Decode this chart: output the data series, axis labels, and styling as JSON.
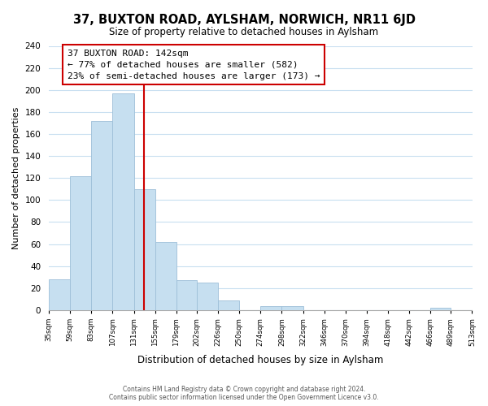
{
  "title": "37, BUXTON ROAD, AYLSHAM, NORWICH, NR11 6JD",
  "subtitle": "Size of property relative to detached houses in Aylsham",
  "xlabel": "Distribution of detached houses by size in Aylsham",
  "ylabel": "Number of detached properties",
  "bin_edges": [
    35,
    59,
    83,
    107,
    131,
    155,
    179,
    202,
    226,
    250,
    274,
    298,
    322,
    346,
    370,
    394,
    418,
    442,
    466,
    489,
    513
  ],
  "bar_heights": [
    28,
    122,
    172,
    197,
    110,
    62,
    27,
    25,
    9,
    0,
    4,
    4,
    0,
    0,
    0,
    0,
    0,
    0,
    2,
    0
  ],
  "tick_labels": [
    "35sqm",
    "59sqm",
    "83sqm",
    "107sqm",
    "131sqm",
    "155sqm",
    "179sqm",
    "202sqm",
    "226sqm",
    "250sqm",
    "274sqm",
    "298sqm",
    "322sqm",
    "346sqm",
    "370sqm",
    "394sqm",
    "418sqm",
    "442sqm",
    "466sqm",
    "489sqm",
    "513sqm"
  ],
  "property_size": 142,
  "bar_color": "#c6dff0",
  "bar_edge_color": "#9dbfd8",
  "vline_color": "#cc0000",
  "annotation_box_edge": "#cc0000",
  "ylim": [
    0,
    240
  ],
  "yticks": [
    0,
    20,
    40,
    60,
    80,
    100,
    120,
    140,
    160,
    180,
    200,
    220,
    240
  ],
  "annotation_title": "37 BUXTON ROAD: 142sqm",
  "annotation_line1": "← 77% of detached houses are smaller (582)",
  "annotation_line2": "23% of semi-detached houses are larger (173) →",
  "footer_line1": "Contains HM Land Registry data © Crown copyright and database right 2024.",
  "footer_line2": "Contains public sector information licensed under the Open Government Licence v3.0."
}
